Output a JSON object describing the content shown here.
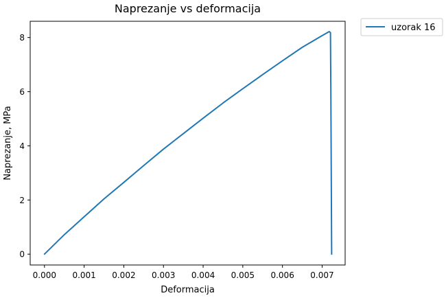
{
  "chart_data": {
    "type": "line",
    "title": "Naprezanje vs deformacija",
    "xlabel": "Deformacija",
    "ylabel": "Naprezanje, MPa",
    "xlim": [
      -0.00036,
      0.00758
    ],
    "ylim": [
      -0.4,
      8.6
    ],
    "xticks": [
      0.0,
      0.001,
      0.002,
      0.003,
      0.004,
      0.005,
      0.006,
      0.007
    ],
    "xtick_labels": [
      "0.000",
      "0.001",
      "0.002",
      "0.003",
      "0.004",
      "0.005",
      "0.006",
      "0.007"
    ],
    "yticks": [
      0,
      2,
      4,
      6,
      8
    ],
    "ytick_labels": [
      "0",
      "2",
      "4",
      "6",
      "8"
    ],
    "grid": false,
    "legend_position": "outside-top-right",
    "series": [
      {
        "name": "uzorak 16",
        "color": "#1f77b4",
        "x": [
          0.0,
          0.0005,
          0.001,
          0.0015,
          0.002,
          0.0025,
          0.003,
          0.0035,
          0.004,
          0.0045,
          0.005,
          0.0055,
          0.006,
          0.0065,
          0.007,
          0.00718,
          0.00721,
          0.00722,
          0.00724
        ],
        "y": [
          0.0,
          0.72,
          1.38,
          2.04,
          2.65,
          3.27,
          3.88,
          4.45,
          5.02,
          5.58,
          6.11,
          6.63,
          7.14,
          7.64,
          8.07,
          8.22,
          8.18,
          6.0,
          0.0
        ]
      }
    ]
  }
}
